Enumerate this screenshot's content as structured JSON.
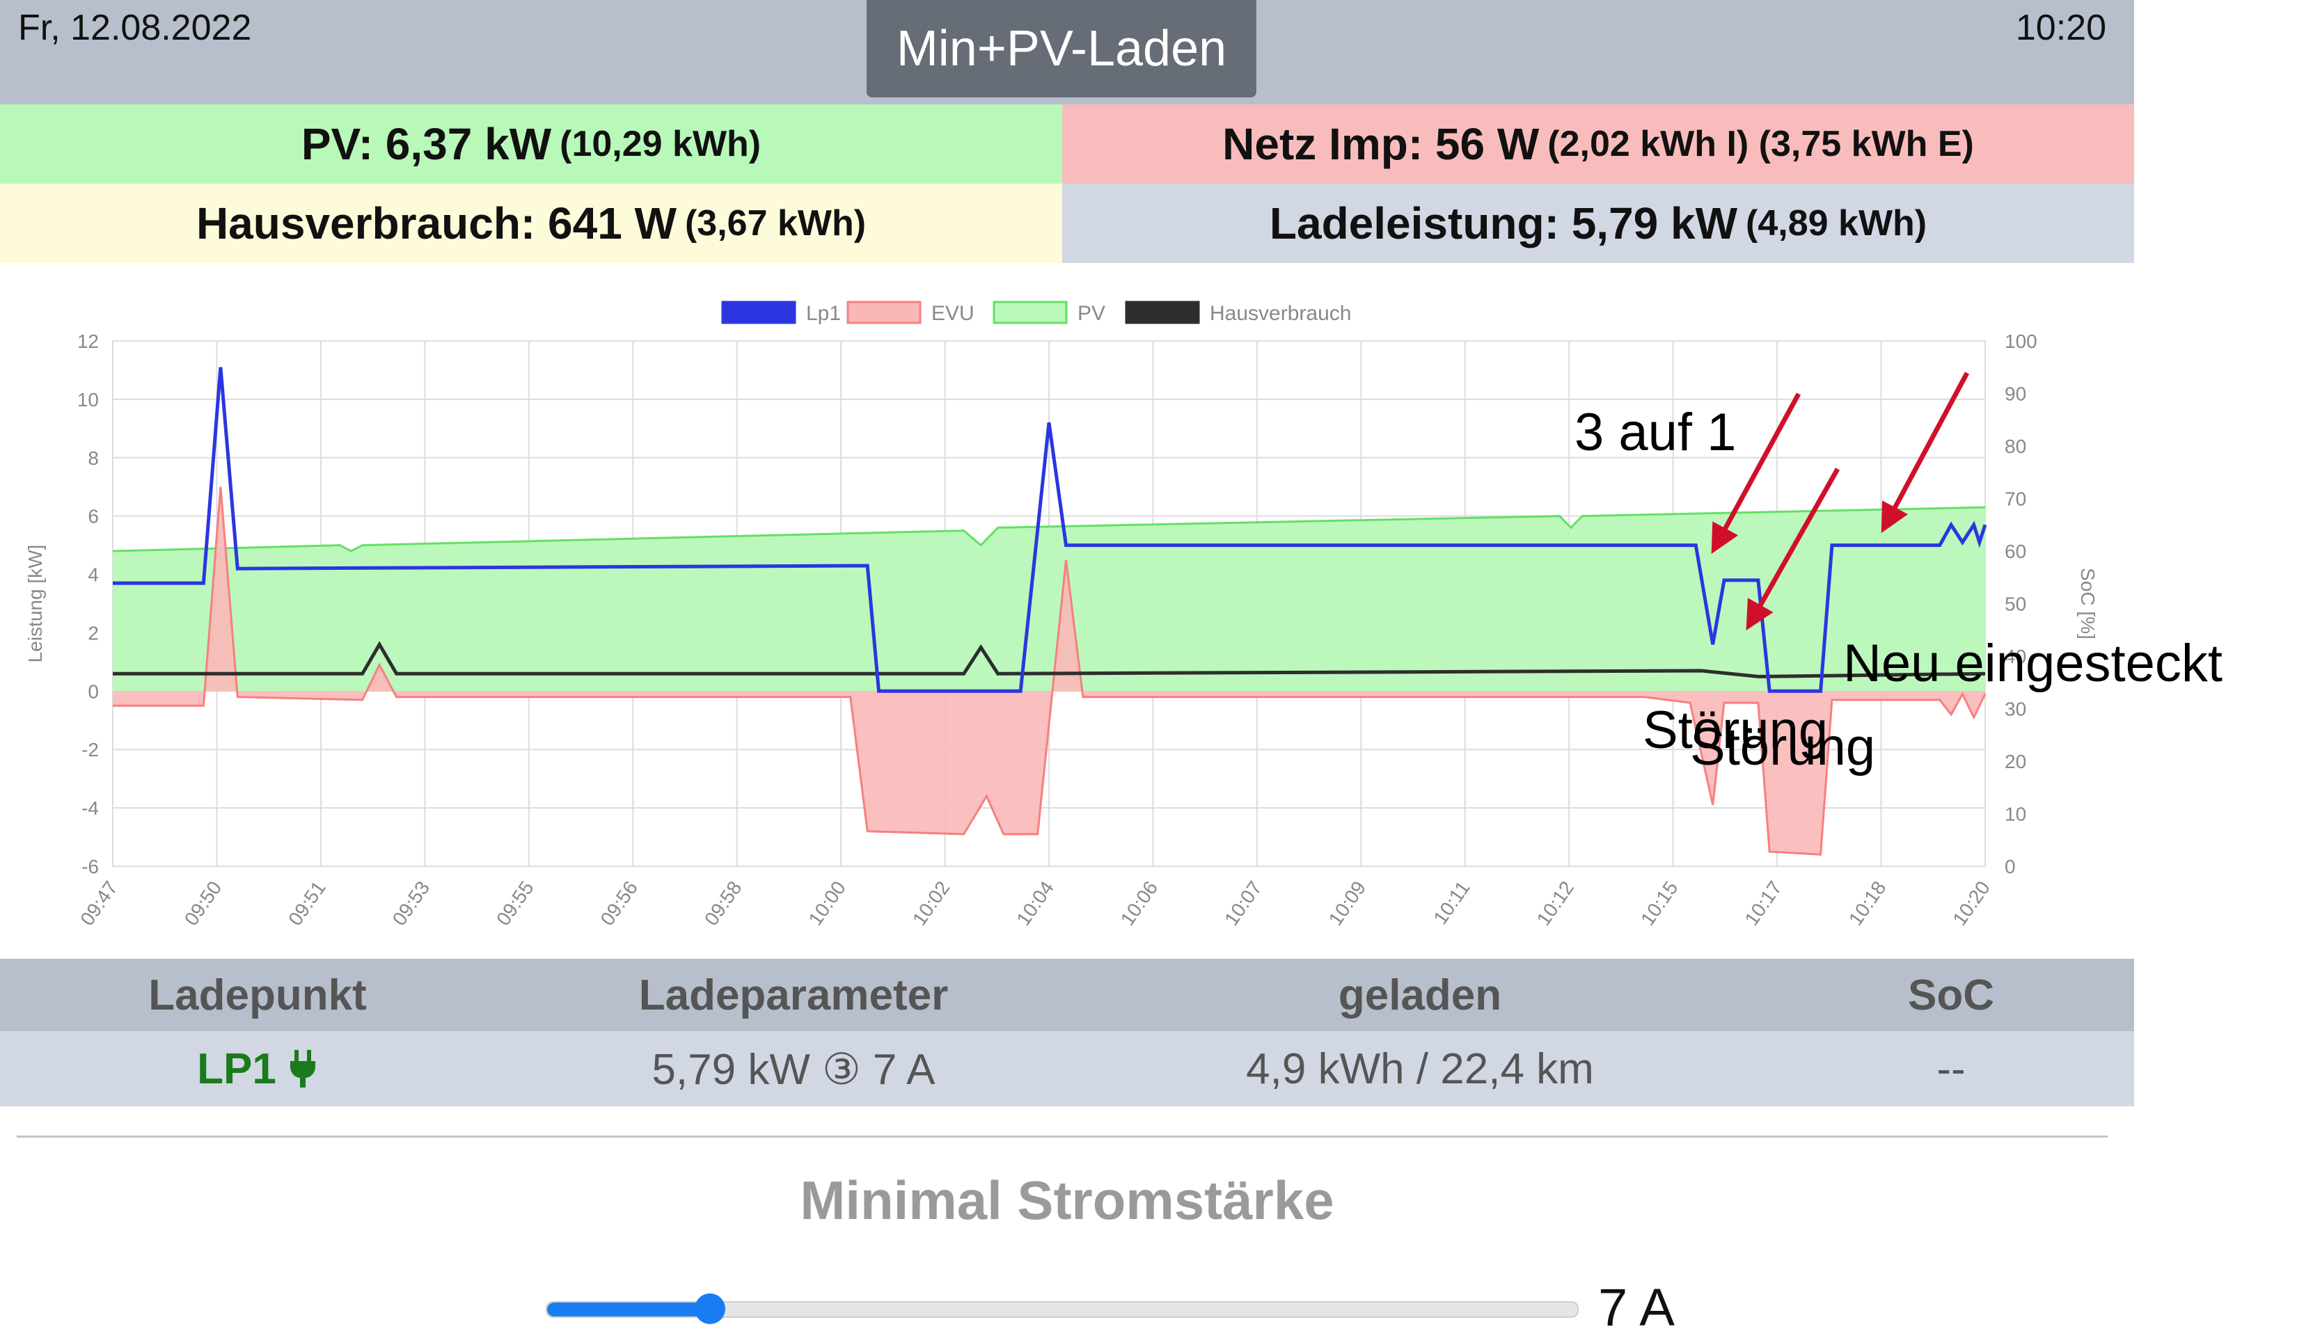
{
  "header": {
    "date": "Fr, 12.08.2022",
    "time": "10:20",
    "mode_button": "Min+PV-Laden"
  },
  "summary": {
    "pv": {
      "main": "PV: 6,37 kW",
      "sub": "(10,29 kWh)"
    },
    "netz": {
      "main": "Netz Imp: 56 W",
      "sub": "(2,02 kWh I) (3,75 kWh E)"
    },
    "haus": {
      "main": "Hausverbrauch: 641 W",
      "sub": "(3,67 kWh)"
    },
    "lade": {
      "main": "Ladeleistung: 5,79 kW",
      "sub": "(4,89 kWh)"
    }
  },
  "chart_data": {
    "type": "area",
    "legend_position": "top",
    "ylabel": "Leistung [kW]",
    "y2label": "SoC [%]",
    "ylim": [
      -6,
      12
    ],
    "y2lim": [
      0,
      100
    ],
    "yticks": [
      12,
      10,
      8,
      6,
      4,
      2,
      0,
      -2,
      -4,
      -6
    ],
    "y2ticks": [
      100,
      90,
      80,
      70,
      60,
      50,
      40,
      30,
      20,
      10,
      0
    ],
    "xlim": [
      "09:47",
      "10:20"
    ],
    "xticks": [
      "09:47",
      "09:50",
      "09:51",
      "09:53",
      "09:55",
      "09:56",
      "09:58",
      "10:00",
      "10:02",
      "10:04",
      "10:06",
      "10:07",
      "10:09",
      "10:11",
      "10:12",
      "10:15",
      "10:17",
      "10:18",
      "10:20"
    ],
    "grid": true,
    "series": [
      {
        "name": "Lp1",
        "color": "#2b36e0",
        "points": [
          [
            "09:47",
            3.7
          ],
          [
            "09:48.3",
            3.7
          ],
          [
            "09:48.6",
            3.7
          ],
          [
            "09:48.9",
            11.1
          ],
          [
            "09:49.2",
            4.2
          ],
          [
            "10:00.3",
            4.3
          ],
          [
            "10:00.5",
            0
          ],
          [
            "10:03.0",
            0
          ],
          [
            "10:03.5",
            9.2
          ],
          [
            "10:03.8",
            5
          ],
          [
            "10:14.9",
            5
          ],
          [
            "10:15.2",
            1.6
          ],
          [
            "10:15.4",
            3.8
          ],
          [
            "10:16.0",
            3.8
          ],
          [
            "10:16.2",
            0
          ],
          [
            "10:17.1",
            0
          ],
          [
            "10:17.3",
            5
          ],
          [
            "10:19.2",
            5
          ],
          [
            "10:19.4",
            5.7
          ],
          [
            "10:19.6",
            5.1
          ],
          [
            "10:19.8",
            5.7
          ],
          [
            "10:19.9",
            5.1
          ],
          [
            "10:20",
            5.7
          ]
        ]
      },
      {
        "name": "EVU",
        "color": "#f77f7f",
        "fill": "#f9b8b8",
        "points": [
          [
            "09:47",
            -0.5
          ],
          [
            "09:48.3",
            -0.5
          ],
          [
            "09:48.6",
            -0.5
          ],
          [
            "09:48.9",
            7
          ],
          [
            "09:49.2",
            -0.2
          ],
          [
            "09:51.4",
            -0.3
          ],
          [
            "09:51.7",
            0.9
          ],
          [
            "09:52.0",
            -0.2
          ],
          [
            "10:00.0",
            -0.2
          ],
          [
            "10:00.3",
            -4.8
          ],
          [
            "10:02.0",
            -4.9
          ],
          [
            "10:02.4",
            -3.6
          ],
          [
            "10:02.7",
            -4.9
          ],
          [
            "10:03.3",
            -4.9
          ],
          [
            "10:03.8",
            4.5
          ],
          [
            "10:04.1",
            -0.2
          ],
          [
            "10:14.0",
            -0.2
          ],
          [
            "10:14.8",
            -0.4
          ],
          [
            "10:15.2",
            -3.9
          ],
          [
            "10:15.4",
            -0.4
          ],
          [
            "10:16.0",
            -0.4
          ],
          [
            "10:16.2",
            -5.5
          ],
          [
            "10:17.1",
            -5.6
          ],
          [
            "10:17.3",
            -0.3
          ],
          [
            "10:19.2",
            -0.3
          ],
          [
            "10:19.4",
            -0.8
          ],
          [
            "10:19.6",
            -0.1
          ],
          [
            "10:19.8",
            -0.9
          ],
          [
            "10:20",
            -0.1
          ]
        ]
      },
      {
        "name": "PV",
        "color": "#64e064",
        "fill": "#b8f8b8",
        "points": [
          [
            "09:47",
            4.8
          ],
          [
            "09:51.0",
            5.0
          ],
          [
            "09:51.2",
            4.8
          ],
          [
            "09:51.4",
            5.0
          ],
          [
            "10:02.0",
            5.5
          ],
          [
            "10:02.3",
            5.0
          ],
          [
            "10:02.6",
            5.6
          ],
          [
            "10:12.5",
            6.0
          ],
          [
            "10:12.7",
            5.6
          ],
          [
            "10:12.9",
            6.0
          ],
          [
            "10:20",
            6.3
          ]
        ]
      },
      {
        "name": "Hausverbrauch",
        "color": "#2e2e2e",
        "points": [
          [
            "09:47",
            0.6
          ],
          [
            "09:51.4",
            0.6
          ],
          [
            "09:51.7",
            1.6
          ],
          [
            "09:52.0",
            0.6
          ],
          [
            "10:02.0",
            0.6
          ],
          [
            "10:02.3",
            1.5
          ],
          [
            "10:02.6",
            0.6
          ],
          [
            "10:15",
            0.7
          ],
          [
            "10:16",
            0.5
          ],
          [
            "10:20",
            0.6
          ]
        ]
      }
    ]
  },
  "annotations": {
    "a1": "3 auf 1",
    "a2": "Neu eingesteckt",
    "a3": "Störung",
    "a4": "Störung"
  },
  "table": {
    "headers": [
      "Ladepunkt",
      "Ladeparameter",
      "geladen",
      "SoC"
    ],
    "row": {
      "ladepunkt": "LP1",
      "ladepunkt_icon": "plug-icon",
      "ladeparameter": "5,79 kW ③ 7 A",
      "geladen": "4,9 kWh / 22,4 km",
      "soc": "--"
    }
  },
  "min_current": {
    "label": "Minimal Stromstärke",
    "value_text": "7 A",
    "slider_fraction": 0.05
  },
  "colors": {
    "header_bg": "#b8bfcc",
    "pv_bg": "#b8f8b8",
    "netz_bg": "#f9bcbc",
    "haus_bg": "#fdfbd9",
    "lade_bg": "#d1d7e3",
    "accent": "#1a7cf3",
    "annotation_arrow": "#d0102a"
  }
}
